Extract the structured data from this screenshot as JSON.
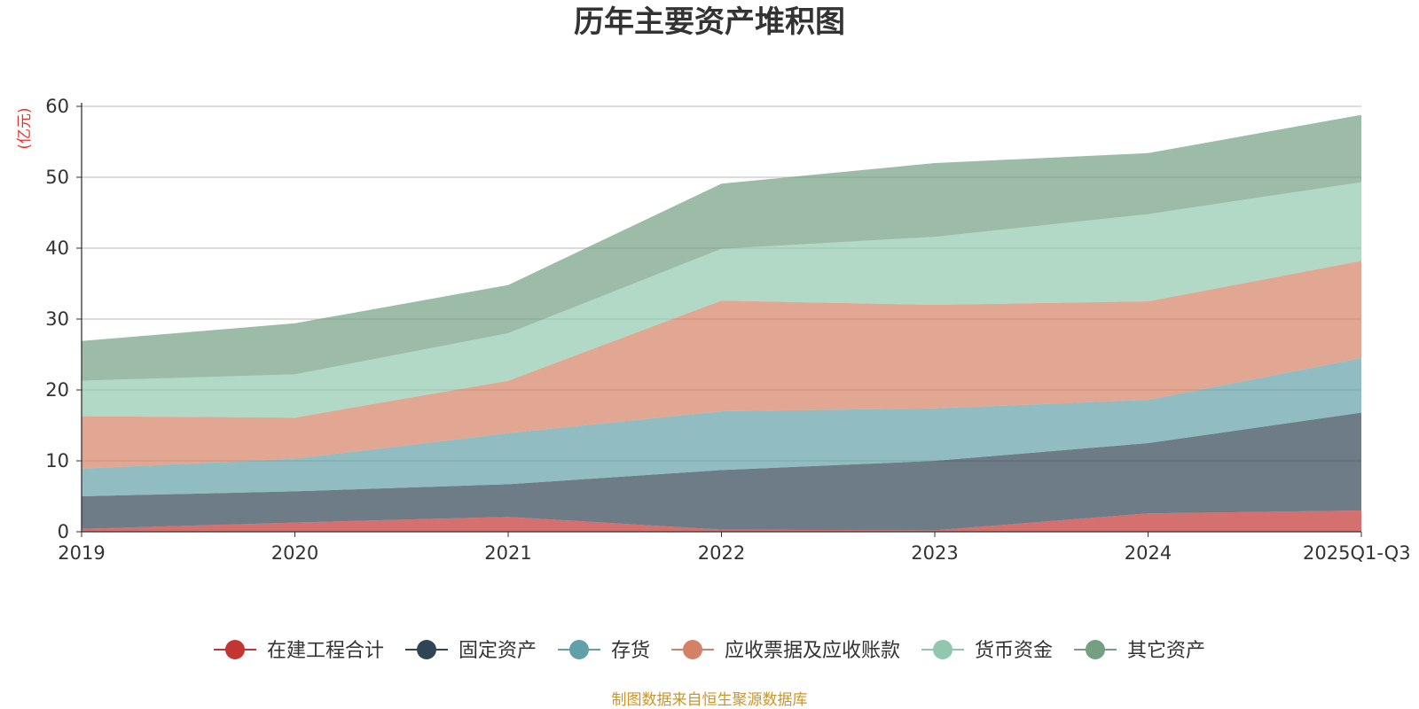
{
  "colors": {
    "series": [
      "#c23531",
      "#2f4554",
      "#61a0a8",
      "#d48265",
      "#91c7ae",
      "#749f83"
    ],
    "grid": "#c8c8c8",
    "axis": "#333333",
    "unit": "#e8312a",
    "source": "#c9962a"
  },
  "chart_data": {
    "type": "area",
    "stacked": true,
    "title": "历年主要资产堆积图",
    "unit_label": "(亿元)",
    "categories": [
      "2019",
      "2020",
      "2021",
      "2022",
      "2023",
      "2024",
      "2025Q1-Q3"
    ],
    "ylim": [
      0,
      60
    ],
    "yticks": [
      "0",
      "10",
      "20",
      "30",
      "40",
      "50",
      "60"
    ],
    "grid": true,
    "legend_position": "bottom-center",
    "series": [
      {
        "name": "在建工程合计",
        "values": [
          0.4,
          1.3,
          2.1,
          0.3,
          0.2,
          2.6,
          3.0
        ]
      },
      {
        "name": "固定资产",
        "values": [
          4.6,
          4.4,
          4.6,
          8.4,
          9.8,
          9.9,
          13.8
        ]
      },
      {
        "name": "存货",
        "values": [
          3.9,
          4.6,
          7.2,
          8.3,
          7.4,
          6.1,
          7.7
        ]
      },
      {
        "name": "应收票据及应收账款",
        "values": [
          7.4,
          5.8,
          7.4,
          15.6,
          14.6,
          13.9,
          13.7
        ]
      },
      {
        "name": "货币资金",
        "values": [
          5.0,
          6.1,
          6.7,
          7.3,
          9.6,
          12.3,
          11.1
        ]
      },
      {
        "name": "其它资产",
        "values": [
          5.6,
          7.2,
          6.8,
          9.2,
          10.4,
          8.6,
          9.5
        ]
      }
    ],
    "source_note": "制图数据来自恒生聚源数据库"
  }
}
